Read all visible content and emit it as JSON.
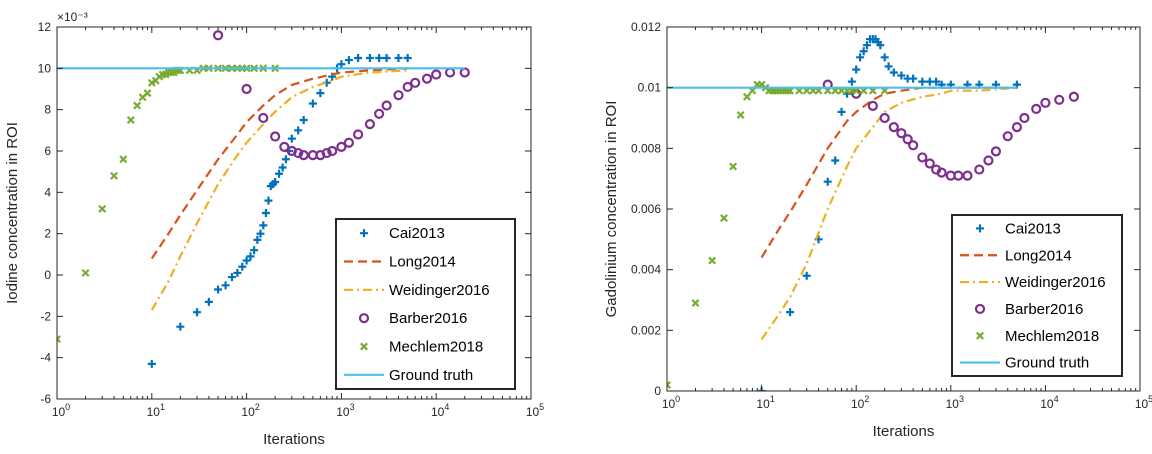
{
  "chart_data": [
    {
      "type": "scatter",
      "xlabel": "Iterations",
      "ylabel": "Iodine concentration in ROI",
      "x_scale": "log",
      "xlim": [
        1,
        100000
      ],
      "ylim": [
        -0.006,
        0.012
      ],
      "exponent_label": "×10⁻³",
      "x_tick_labels": [
        {
          "base": "10",
          "exp": "0"
        },
        {
          "base": "10",
          "exp": "1"
        },
        {
          "base": "10",
          "exp": "2"
        },
        {
          "base": "10",
          "exp": "3"
        },
        {
          "base": "10",
          "exp": "4"
        },
        {
          "base": "10",
          "exp": "5"
        }
      ],
      "y_ticks": [
        -0.006,
        -0.004,
        -0.002,
        0,
        0.002,
        0.004,
        0.006,
        0.008,
        0.01,
        0.012
      ],
      "y_tick_labels": [
        "-6",
        "-4",
        "-2",
        "0",
        "2",
        "4",
        "6",
        "8",
        "10",
        "12"
      ],
      "legend_position": "bottom-right",
      "series": [
        {
          "name": "Cai2013",
          "color": "#0072BD",
          "marker": "plus",
          "x": [
            10,
            20,
            30,
            40,
            50,
            60,
            70,
            80,
            90,
            100,
            110,
            120,
            130,
            140,
            150,
            160,
            170,
            180,
            190,
            200,
            220,
            240,
            260,
            280,
            300,
            350,
            400,
            500,
            600,
            700,
            800,
            900,
            1000,
            1200,
            1500,
            2000,
            2500,
            3000,
            4000,
            5000
          ],
          "y": [
            -0.0043,
            -0.0025,
            -0.0018,
            -0.0013,
            -0.0007,
            -0.0005,
            -0.0001,
            0.0001,
            0.0004,
            0.0007,
            0.0009,
            0.0012,
            0.0017,
            0.002,
            0.0024,
            0.003,
            0.0036,
            0.0043,
            0.0044,
            0.0045,
            0.0049,
            0.0052,
            0.0056,
            0.006,
            0.0066,
            0.007,
            0.0075,
            0.0083,
            0.0088,
            0.0093,
            0.0096,
            0.01,
            0.0102,
            0.0104,
            0.0105,
            0.0105,
            0.0105,
            0.0105,
            0.0105,
            0.0105
          ]
        },
        {
          "name": "Long2014",
          "color": "#D95319",
          "marker": "dashed",
          "x": [
            10,
            15,
            20,
            30,
            50,
            80,
            100,
            150,
            200,
            300,
            500,
            800,
            1000,
            2000,
            5000
          ],
          "y": [
            0.0008,
            0.002,
            0.0029,
            0.0041,
            0.0056,
            0.0068,
            0.0074,
            0.0082,
            0.0087,
            0.0092,
            0.0095,
            0.0097,
            0.0098,
            0.0099,
            0.01
          ]
        },
        {
          "name": "Weidinger2016",
          "color": "#EDB120",
          "marker": "dashdot",
          "x": [
            10,
            15,
            20,
            30,
            50,
            80,
            100,
            150,
            200,
            300,
            500,
            800,
            1000,
            2000,
            5000
          ],
          "y": [
            -0.0017,
            -0.0003,
            0.0009,
            0.0025,
            0.0044,
            0.0058,
            0.0064,
            0.0073,
            0.0079,
            0.0086,
            0.0091,
            0.0094,
            0.0096,
            0.0098,
            0.0099
          ]
        },
        {
          "name": "Barber2016",
          "color": "#7E2F8E",
          "marker": "circle",
          "x": [
            50,
            100,
            150,
            200,
            250,
            300,
            350,
            400,
            500,
            600,
            700,
            800,
            1000,
            1200,
            1500,
            2000,
            2500,
            3000,
            4000,
            5000,
            6000,
            8000,
            10000,
            14000,
            20000
          ],
          "y": [
            0.0116,
            0.009,
            0.0076,
            0.0067,
            0.0062,
            0.006,
            0.0059,
            0.0058,
            0.0058,
            0.0058,
            0.0059,
            0.006,
            0.0062,
            0.0064,
            0.0068,
            0.0073,
            0.0078,
            0.0082,
            0.0087,
            0.0091,
            0.0093,
            0.0095,
            0.0097,
            0.0098,
            0.0098
          ]
        },
        {
          "name": "Mechlem2018",
          "color": "#77AC30",
          "marker": "x",
          "x": [
            1,
            2,
            3,
            4,
            5,
            6,
            7,
            8,
            9,
            10,
            11,
            12,
            13,
            14,
            15,
            16,
            17,
            18,
            19,
            20,
            25,
            30,
            35,
            40,
            50,
            60,
            70,
            80,
            90,
            100,
            120,
            150,
            200
          ],
          "y": [
            -0.0031,
            0.0001,
            0.0032,
            0.0048,
            0.0056,
            0.0075,
            0.0082,
            0.0086,
            0.0088,
            0.0093,
            0.0094,
            0.0096,
            0.0097,
            0.0097,
            0.0098,
            0.0098,
            0.0098,
            0.0099,
            0.0099,
            0.0099,
            0.0099,
            0.0099,
            0.01,
            0.01,
            0.01,
            0.01,
            0.01,
            0.01,
            0.01,
            0.01,
            0.01,
            0.01,
            0.01
          ]
        },
        {
          "name": "Ground truth",
          "color": "#4DBEEE",
          "marker": "solid",
          "x": [
            1,
            20000
          ],
          "y": [
            0.01,
            0.01
          ]
        }
      ]
    },
    {
      "type": "scatter",
      "xlabel": "Iterations",
      "ylabel": "Gadolinium concentration in ROI",
      "x_scale": "log",
      "xlim": [
        1,
        100000
      ],
      "ylim": [
        0,
        0.012
      ],
      "exponent_label": "",
      "x_tick_labels": [
        {
          "base": "10",
          "exp": "0"
        },
        {
          "base": "10",
          "exp": "1"
        },
        {
          "base": "10",
          "exp": "2"
        },
        {
          "base": "10",
          "exp": "3"
        },
        {
          "base": "10",
          "exp": "4"
        },
        {
          "base": "10",
          "exp": "5"
        }
      ],
      "y_ticks": [
        0,
        0.002,
        0.004,
        0.006,
        0.008,
        0.01,
        0.012
      ],
      "y_tick_labels": [
        "0",
        "0.002",
        "0.004",
        "0.006",
        "0.008",
        "0.01",
        "0.012"
      ],
      "legend_position": "bottom-right",
      "series": [
        {
          "name": "Cai2013",
          "color": "#0072BD",
          "marker": "plus",
          "x": [
            10,
            20,
            30,
            40,
            50,
            60,
            70,
            80,
            90,
            100,
            110,
            120,
            130,
            140,
            150,
            160,
            170,
            180,
            200,
            220,
            250,
            300,
            350,
            400,
            500,
            600,
            700,
            800,
            1000,
            1500,
            2000,
            3000,
            5000
          ],
          "y": [
            0.0,
            0.0026,
            0.0038,
            0.005,
            0.0069,
            0.0076,
            0.0092,
            0.0098,
            0.0102,
            0.0106,
            0.011,
            0.0112,
            0.0114,
            0.0116,
            0.0116,
            0.0116,
            0.0115,
            0.0114,
            0.011,
            0.0107,
            0.0105,
            0.0104,
            0.0103,
            0.0103,
            0.0102,
            0.0102,
            0.0102,
            0.0101,
            0.0101,
            0.0101,
            0.0101,
            0.0101,
            0.0101
          ]
        },
        {
          "name": "Long2014",
          "color": "#D95319",
          "marker": "dashed",
          "x": [
            10,
            15,
            20,
            30,
            50,
            80,
            100,
            150,
            200,
            300,
            500,
            800,
            1000,
            2000,
            5000
          ],
          "y": [
            0.0044,
            0.0053,
            0.0059,
            0.0068,
            0.008,
            0.0089,
            0.0092,
            0.0096,
            0.0098,
            0.0099,
            0.01,
            0.01,
            0.01,
            0.01,
            0.01
          ]
        },
        {
          "name": "Weidinger2016",
          "color": "#EDB120",
          "marker": "dashdot",
          "x": [
            10,
            15,
            20,
            30,
            50,
            80,
            100,
            150,
            200,
            300,
            500,
            800,
            1000,
            2000,
            5000
          ],
          "y": [
            0.0017,
            0.0025,
            0.0031,
            0.0042,
            0.006,
            0.0074,
            0.008,
            0.0087,
            0.0092,
            0.0095,
            0.0097,
            0.0098,
            0.0099,
            0.0099,
            0.01
          ]
        },
        {
          "name": "Barber2016",
          "color": "#7E2F8E",
          "marker": "circle",
          "x": [
            50,
            100,
            150,
            200,
            250,
            300,
            350,
            400,
            500,
            600,
            700,
            800,
            1000,
            1200,
            1500,
            2000,
            2500,
            3000,
            4000,
            5000,
            6000,
            8000,
            10000,
            14000,
            20000
          ],
          "y": [
            0.0101,
            0.0098,
            0.0094,
            0.009,
            0.0087,
            0.0085,
            0.0083,
            0.0081,
            0.0077,
            0.0075,
            0.0073,
            0.0072,
            0.0071,
            0.0071,
            0.0071,
            0.0073,
            0.0076,
            0.0079,
            0.0084,
            0.0087,
            0.009,
            0.0093,
            0.0095,
            0.0096,
            0.0097
          ]
        },
        {
          "name": "Mechlem2018",
          "color": "#77AC30",
          "marker": "x",
          "x": [
            1,
            2,
            3,
            4,
            5,
            6,
            7,
            8,
            9,
            10,
            11,
            12,
            13,
            14,
            15,
            16,
            17,
            18,
            19,
            20,
            25,
            30,
            35,
            40,
            50,
            60,
            70,
            80,
            90,
            100,
            120,
            150,
            200
          ],
          "y": [
            0.0002,
            0.0029,
            0.0043,
            0.0057,
            0.0074,
            0.0091,
            0.0097,
            0.0099,
            0.0101,
            0.0101,
            0.01,
            0.0099,
            0.0099,
            0.0099,
            0.0099,
            0.0099,
            0.0099,
            0.0099,
            0.0099,
            0.0099,
            0.0099,
            0.0099,
            0.0099,
            0.0099,
            0.0099,
            0.0099,
            0.0099,
            0.0099,
            0.0099,
            0.0099,
            0.0099,
            0.0099,
            0.0099
          ]
        },
        {
          "name": "Ground truth",
          "color": "#4DBEEE",
          "marker": "solid",
          "x": [
            1,
            5000
          ],
          "y": [
            0.01,
            0.01
          ]
        }
      ]
    }
  ]
}
